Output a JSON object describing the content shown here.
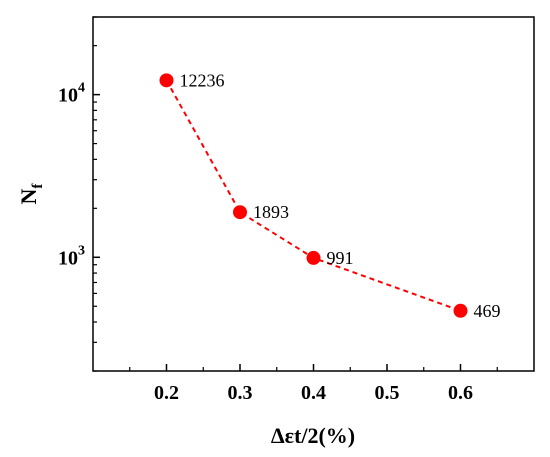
{
  "chart_data": {
    "type": "scatter",
    "x_scale": "linear",
    "y_scale": "log",
    "xlabel": "Δεt/2(%)",
    "ylabel": {
      "main": "N",
      "sub": "f"
    },
    "xlim": [
      0.1,
      0.7
    ],
    "ylim": [
      200,
      30000
    ],
    "x_ticks": [
      {
        "value": 0.2,
        "label": "0.2"
      },
      {
        "value": 0.3,
        "label": "0.3"
      },
      {
        "value": 0.4,
        "label": "0.4"
      },
      {
        "value": 0.5,
        "label": "0.5"
      },
      {
        "value": 0.6,
        "label": "0.6"
      }
    ],
    "y_ticks": [
      {
        "value": 1000,
        "base": "10",
        "exp": "3"
      },
      {
        "value": 10000,
        "base": "10",
        "exp": "4"
      }
    ],
    "line_style": "dashed",
    "series": [
      {
        "color": "#ff0000",
        "points": [
          {
            "x": 0.2,
            "y": 12236,
            "label": "12236"
          },
          {
            "x": 0.3,
            "y": 1893,
            "label": "1893"
          },
          {
            "x": 0.4,
            "y": 991,
            "label": "991"
          },
          {
            "x": 0.6,
            "y": 469,
            "label": "469"
          }
        ]
      }
    ]
  }
}
